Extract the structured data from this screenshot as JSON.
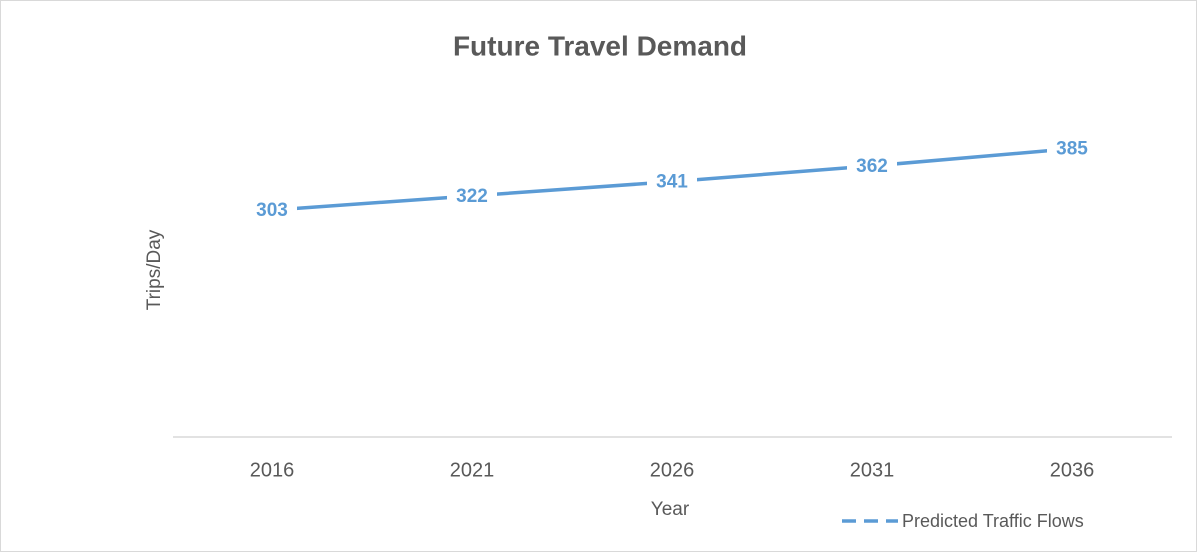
{
  "chart_data": {
    "type": "line",
    "title": "Future Travel Demand",
    "x_label": "Year",
    "y_label": "Trips/Day",
    "categories": [
      "2016",
      "2021",
      "2026",
      "2031",
      "2036"
    ],
    "series": [
      {
        "name": "Predicted Traffic Flows",
        "color": "#5b9bd5",
        "values": [
          303,
          322,
          341,
          362,
          385
        ]
      }
    ],
    "ylim": [
      0,
      450
    ],
    "grid": false,
    "legend": "bottom-right",
    "legend_style": "dashed"
  }
}
